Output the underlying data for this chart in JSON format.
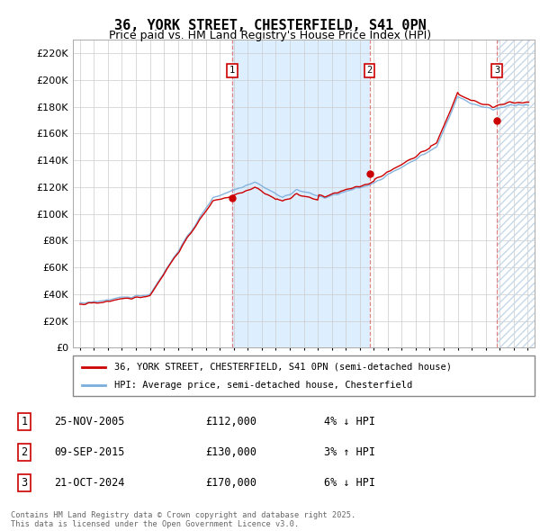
{
  "title": "36, YORK STREET, CHESTERFIELD, S41 0PN",
  "subtitle": "Price paid vs. HM Land Registry's House Price Index (HPI)",
  "legend_line1": "36, YORK STREET, CHESTERFIELD, S41 0PN (semi-detached house)",
  "legend_line2": "HPI: Average price, semi-detached house, Chesterfield",
  "footer": "Contains HM Land Registry data © Crown copyright and database right 2025.\nThis data is licensed under the Open Government Licence v3.0.",
  "sales": [
    {
      "num": 1,
      "date": "25-NOV-2005",
      "price": 112000,
      "pct": "4%",
      "dir": "↓",
      "year": 2005.9
    },
    {
      "num": 2,
      "date": "09-SEP-2015",
      "price": 130000,
      "pct": "3%",
      "dir": "↑",
      "year": 2015.7
    },
    {
      "num": 3,
      "date": "21-OCT-2024",
      "price": 170000,
      "pct": "6%",
      "dir": "↓",
      "year": 2024.8
    }
  ],
  "red_color": "#cc0000",
  "blue_color": "#7aaddb",
  "shade_color": "#ddeeff",
  "bg_color": "#ffffff",
  "grid_color": "#cccccc",
  "box_color": "#cc0000",
  "ylim": [
    0,
    230000
  ],
  "xlim_start": 1994.5,
  "xlim_end": 2027.5,
  "shade_start": 2005.9,
  "shade_end": 2015.7,
  "hatch_start": 2024.8
}
